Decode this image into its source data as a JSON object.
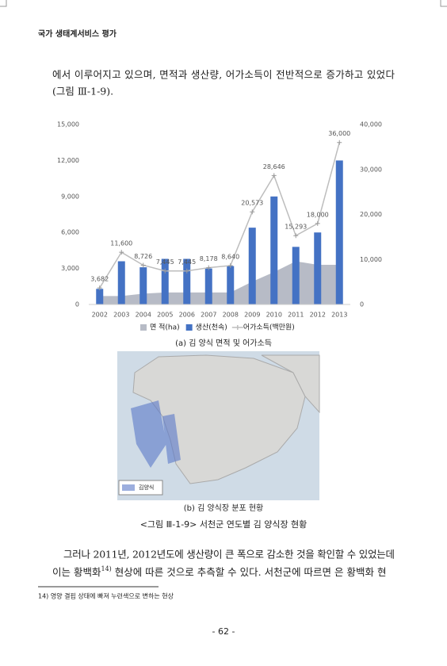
{
  "header": {
    "title": "국가 생태계서비스 평가"
  },
  "paragraph1": {
    "lines": [
      "에서 이루어지고 있으며, 면적과 생산량, 어가소득이 전반적으로 증가하고 있었다",
      "(그림 Ⅲ-1-9)."
    ]
  },
  "chart_data": {
    "type": "combo",
    "categories": [
      "2002",
      "2003",
      "2004",
      "2005",
      "2006",
      "2007",
      "2008",
      "2009",
      "2010",
      "2011",
      "2012",
      "2013"
    ],
    "series": [
      {
        "name": "면 적(ha)",
        "kind": "area",
        "color": "#b7bbc6",
        "values": [
          700,
          700,
          900,
          1000,
          1000,
          1000,
          1000,
          1900,
          2700,
          3600,
          3300,
          3300
        ]
      },
      {
        "name": "생산(천속)",
        "kind": "bar",
        "color": "#4472c4",
        "values": [
          1300,
          3600,
          3100,
          3800,
          3800,
          3000,
          3200,
          6400,
          9000,
          4800,
          6000,
          12000
        ]
      },
      {
        "name": "어가소득(백만원)",
        "kind": "line",
        "axis": "y2",
        "color": "#bdbdbd",
        "values": [
          3682,
          11600,
          8726,
          7445,
          7445,
          8178,
          8640,
          20573,
          28646,
          15293,
          18000,
          36000
        ],
        "value_labels": [
          "3,682",
          "11,600",
          "8,726",
          "7,445",
          "7,445",
          "8,178",
          "8,640",
          "20,573",
          "28,646",
          "15,293",
          "18,000",
          "36,000"
        ]
      }
    ],
    "ylim": [
      0,
      15000
    ],
    "yticks": [
      0,
      {
        "value": 3000,
        "label": "3,000"
      },
      {
        "value": 6000,
        "label": "6,000"
      },
      {
        "value": 9000,
        "label": "9,000"
      },
      {
        "value": 12000,
        "label": "12,000"
      },
      {
        "value": 15000,
        "label": "15,000"
      }
    ],
    "y2lim": [
      0,
      40000
    ],
    "y2ticks": [
      0,
      {
        "value": 10000,
        "label": "10,000"
      },
      {
        "value": 20000,
        "label": "20,000"
      },
      {
        "value": 30000,
        "label": "30,000"
      },
      {
        "value": 40000,
        "label": "40,000"
      }
    ],
    "grid": false,
    "legend": "bottom"
  },
  "figure": {
    "caption_a": "(a) 김 양식 면적 및 어가소득",
    "map_legend": "김양식",
    "caption_b": "(b) 김 양식장 분포 현황",
    "title": "<그림 Ⅲ-1-9> 서천군 연도별 김 양식장 현황"
  },
  "paragraph2": {
    "line1": "그러나 2011년, 2012년도에 생산량이 큰 폭으로 감소한 것을 확인할 수 있었는데",
    "line2_before": "이는 황백화",
    "line2_note": "14)",
    "line2_after": " 현상에 따른 것으로 추측할 수 있다. 서천군에 따르면 은 황백화 현"
  },
  "footnote": "14) 영양 결핍 상태에 빠져 누런색으로 변하는 현상",
  "page_number": "- 62 -"
}
